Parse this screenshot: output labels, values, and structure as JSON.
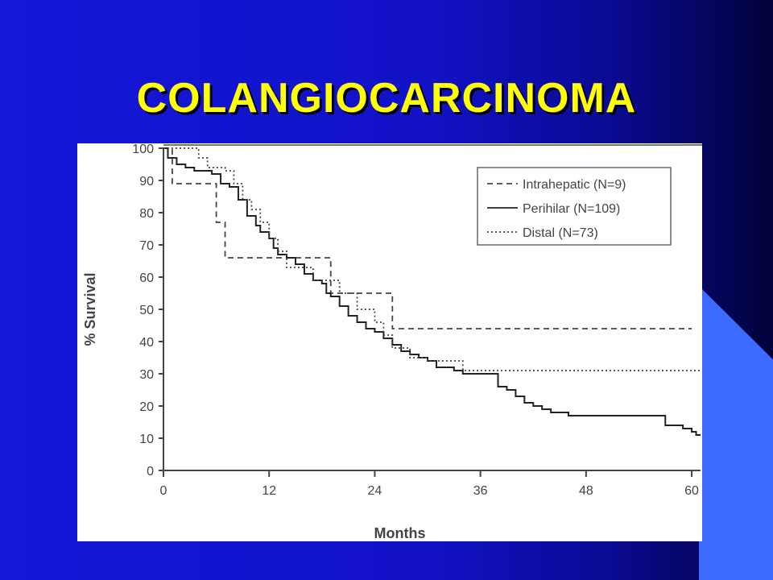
{
  "slide": {
    "title": "COLANGIOCARCINOMA",
    "title_color": "#ffff00",
    "background_color": "#1212c8",
    "accent_color": "#3d6bff"
  },
  "chart_data": {
    "type": "line",
    "title": "",
    "xlabel": "Months",
    "ylabel": "% Survival",
    "xlim": [
      0,
      61
    ],
    "ylim": [
      0,
      100
    ],
    "x_ticks": [
      0,
      12,
      24,
      36,
      48,
      60
    ],
    "y_ticks": [
      0,
      10,
      20,
      30,
      40,
      50,
      60,
      70,
      80,
      90,
      100
    ],
    "grid": false,
    "legend_position": "top-right",
    "step": true,
    "series": [
      {
        "name": "Intrahepatic (N=9)",
        "style": "dashed",
        "color": "#444444",
        "points": [
          [
            0,
            100
          ],
          [
            1,
            89
          ],
          [
            6,
            89
          ],
          [
            6,
            77
          ],
          [
            7,
            77
          ],
          [
            7,
            66
          ],
          [
            19,
            66
          ],
          [
            19,
            55
          ],
          [
            26,
            55
          ],
          [
            26,
            44
          ],
          [
            60,
            44
          ]
        ]
      },
      {
        "name": "Perihilar (N=109)",
        "style": "solid",
        "color": "#222222",
        "points": [
          [
            0,
            100
          ],
          [
            0.5,
            97
          ],
          [
            1.5,
            95
          ],
          [
            2.5,
            94
          ],
          [
            3.5,
            93
          ],
          [
            5.5,
            92
          ],
          [
            6.5,
            89
          ],
          [
            7.5,
            88
          ],
          [
            8.5,
            84
          ],
          [
            9.5,
            79
          ],
          [
            10.5,
            76
          ],
          [
            11,
            74
          ],
          [
            12,
            72
          ],
          [
            12.5,
            69
          ],
          [
            13,
            67
          ],
          [
            14,
            66
          ],
          [
            15,
            64
          ],
          [
            16,
            61
          ],
          [
            17,
            59
          ],
          [
            18,
            58
          ],
          [
            18.5,
            55
          ],
          [
            19,
            54
          ],
          [
            20,
            51
          ],
          [
            21,
            48
          ],
          [
            22,
            46
          ],
          [
            23,
            44
          ],
          [
            24,
            43
          ],
          [
            25,
            41
          ],
          [
            26,
            39
          ],
          [
            27,
            37
          ],
          [
            28,
            36
          ],
          [
            29,
            35
          ],
          [
            30,
            34
          ],
          [
            31,
            32
          ],
          [
            33,
            31
          ],
          [
            34,
            30
          ],
          [
            38,
            30
          ],
          [
            38,
            26
          ],
          [
            39,
            25
          ],
          [
            40,
            23
          ],
          [
            41,
            21
          ],
          [
            42,
            20
          ],
          [
            43,
            19
          ],
          [
            44,
            18
          ],
          [
            46,
            17
          ],
          [
            48,
            17
          ],
          [
            56,
            17
          ],
          [
            57,
            14
          ],
          [
            59,
            13
          ],
          [
            60,
            12
          ],
          [
            60.5,
            11
          ],
          [
            61,
            11
          ]
        ]
      },
      {
        "name": "Distal (N=73)",
        "style": "dotted",
        "color": "#444444",
        "points": [
          [
            0,
            100
          ],
          [
            4,
            100
          ],
          [
            4,
            97
          ],
          [
            5,
            97
          ],
          [
            5,
            94
          ],
          [
            7,
            94
          ],
          [
            7,
            93
          ],
          [
            8,
            93
          ],
          [
            8,
            89
          ],
          [
            9,
            89
          ],
          [
            9,
            84
          ],
          [
            10,
            84
          ],
          [
            10,
            81
          ],
          [
            11,
            81
          ],
          [
            11,
            77
          ],
          [
            12,
            77
          ],
          [
            12,
            72
          ],
          [
            13,
            72
          ],
          [
            13,
            68
          ],
          [
            14,
            68
          ],
          [
            14,
            63
          ],
          [
            17,
            63
          ],
          [
            17,
            59
          ],
          [
            20,
            59
          ],
          [
            20,
            55
          ],
          [
            22,
            55
          ],
          [
            22,
            50
          ],
          [
            24,
            50
          ],
          [
            24,
            46
          ],
          [
            25,
            46
          ],
          [
            25,
            42
          ],
          [
            26,
            42
          ],
          [
            26,
            38
          ],
          [
            28,
            38
          ],
          [
            28,
            35
          ],
          [
            30,
            35
          ],
          [
            30,
            34
          ],
          [
            34,
            34
          ],
          [
            34,
            31
          ],
          [
            61,
            31
          ]
        ]
      }
    ]
  }
}
